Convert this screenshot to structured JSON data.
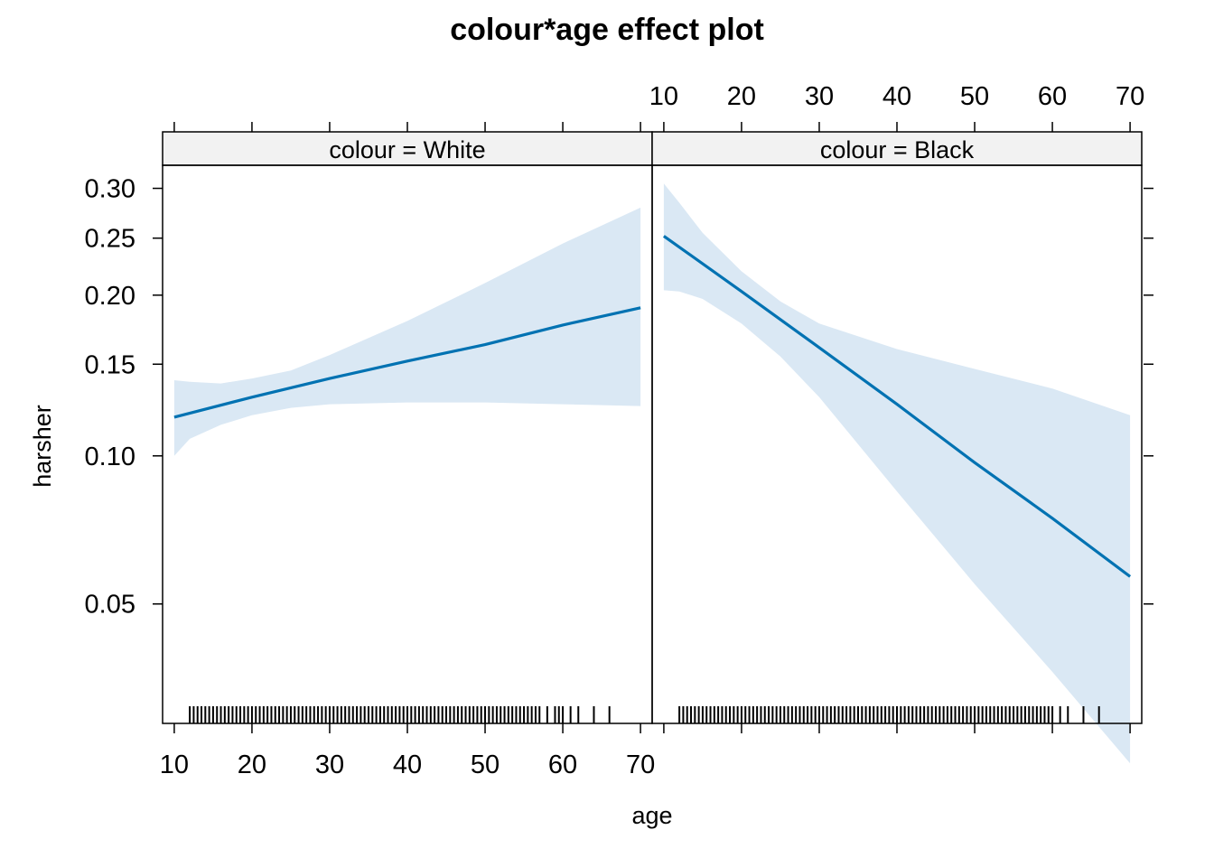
{
  "chart_data": {
    "type": "line",
    "title": "colour*age effect plot",
    "xlabel": "age",
    "ylabel": "harsher",
    "y_scale": "logit",
    "x_ticks": [
      "10",
      "20",
      "30",
      "40",
      "50",
      "60",
      "70"
    ],
    "y_ticks": [
      "0.05",
      "0.10",
      "0.15",
      "0.20",
      "0.25",
      "0.30"
    ],
    "xlim": [
      8.5,
      71.5
    ],
    "ylim": [
      0.028,
      0.325
    ],
    "colors": {
      "line": "#0072B2",
      "band": "#DAE8F4",
      "strip": "#F2F2F2",
      "axis": "#000000"
    },
    "panels": [
      {
        "strip_label": "colour = White",
        "series": [
          {
            "x": [
              10,
              20,
              30,
              40,
              50,
              60,
              70
            ],
            "fit": [
              0.119,
              0.13,
              0.141,
              0.152,
              0.163,
              0.177,
              0.19
            ]
          }
        ],
        "band_x": [
          10,
          12,
          16,
          20,
          25,
          30,
          40,
          50,
          60,
          70
        ],
        "band_lower": [
          0.1,
          0.108,
          0.115,
          0.12,
          0.124,
          0.126,
          0.127,
          0.127,
          0.126,
          0.125
        ],
        "band_upper": [
          0.14,
          0.139,
          0.138,
          0.141,
          0.146,
          0.156,
          0.18,
          0.21,
          0.245,
          0.28
        ],
        "rug": [
          12,
          12.5,
          13,
          13.5,
          14,
          14.5,
          15,
          15.5,
          16,
          16.5,
          17,
          17.5,
          18,
          18.5,
          19,
          19.5,
          20,
          20.5,
          21,
          21.5,
          22,
          22.5,
          23,
          23.5,
          24,
          24.5,
          25,
          25.5,
          26,
          26.5,
          27,
          27.5,
          28,
          28.5,
          29,
          29.5,
          30,
          30.5,
          31,
          31.5,
          32,
          32.5,
          33,
          33.5,
          34,
          34.5,
          35,
          35.5,
          36,
          36.5,
          37,
          37.5,
          38,
          38.5,
          39,
          39.5,
          40,
          40.5,
          41,
          41.5,
          42,
          42.5,
          43,
          43.5,
          44,
          44.5,
          45,
          45.5,
          46,
          46.5,
          47,
          47.5,
          48,
          48.5,
          49,
          49.5,
          50,
          50.5,
          51,
          51.5,
          52,
          52.5,
          53,
          53.5,
          54,
          54.5,
          55,
          55.5,
          56,
          56.5,
          57,
          58,
          59,
          59.5,
          60,
          61,
          62,
          64,
          66
        ]
      },
      {
        "strip_label": "colour = Black",
        "series": [
          {
            "x": [
              10,
              20,
              30,
              40,
              50,
              60,
              70
            ],
            "fit": [
              0.252,
              0.203,
              0.161,
              0.126,
              0.097,
              0.075,
              0.057
            ]
          }
        ],
        "band_x": [
          10,
          12,
          15,
          20,
          25,
          30,
          40,
          50,
          60,
          70
        ],
        "band_lower": [
          0.204,
          0.203,
          0.197,
          0.178,
          0.155,
          0.13,
          0.085,
          0.055,
          0.036,
          0.023
        ],
        "band_upper": [
          0.305,
          0.285,
          0.255,
          0.22,
          0.195,
          0.178,
          0.16,
          0.147,
          0.135,
          0.12
        ],
        "rug": [
          12,
          12.5,
          13,
          13.5,
          14,
          14.5,
          15,
          15.5,
          16,
          16.5,
          17,
          17.5,
          18,
          18.5,
          19,
          19.5,
          20,
          20.5,
          21,
          21.5,
          22,
          22.5,
          23,
          23.5,
          24,
          24.5,
          25,
          25.5,
          26,
          26.5,
          27,
          27.5,
          28,
          28.5,
          29,
          29.5,
          30,
          30.5,
          31,
          31.5,
          32,
          32.5,
          33,
          33.5,
          34,
          34.5,
          35,
          35.5,
          36,
          36.5,
          37,
          37.5,
          38,
          38.5,
          39,
          39.5,
          40,
          40.5,
          41,
          41.5,
          42,
          42.5,
          43,
          43.5,
          44,
          44.5,
          45,
          45.5,
          46,
          46.5,
          47,
          47.5,
          48,
          48.5,
          49,
          49.5,
          50,
          50.5,
          51,
          51.5,
          52,
          52.5,
          53,
          53.5,
          54,
          54.5,
          55,
          55.5,
          56,
          56.5,
          57,
          57.5,
          58,
          58.5,
          59,
          59.5,
          60,
          61,
          62,
          64,
          66
        ]
      }
    ]
  }
}
